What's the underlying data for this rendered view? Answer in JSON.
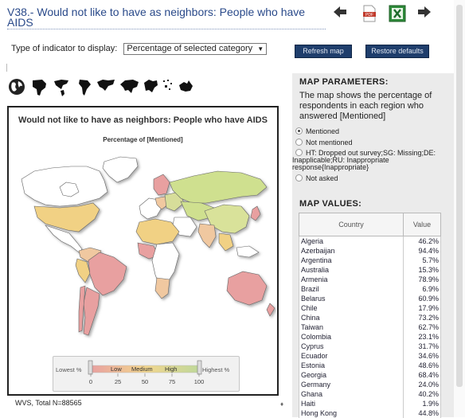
{
  "title": "V38.- Would not like to have as neighbors: People who have AIDS",
  "toolbar": {
    "back_icon": "arrow-left-icon",
    "pdf_icon": "pdf-icon",
    "excel_icon": "excel-icon",
    "forward_icon": "arrow-right-icon",
    "pdf_text": "PDF"
  },
  "controls": {
    "indicator_label": "Type of indicator to display:",
    "indicator_selected": "Percentage of selected category",
    "refresh_label": "Refresh map",
    "restore_label": "Restore defaults"
  },
  "map": {
    "title": "Would not like to have as neighbors: People who have AIDS",
    "subtitle": "Percentage of [Mentioned]",
    "legend": {
      "lowest": "Lowest %",
      "highest": "Highest %",
      "low": "Low",
      "medium": "Medium",
      "high": "High",
      "ticks": [
        "0",
        "25",
        "50",
        "75",
        "100"
      ]
    },
    "colors": {
      "low": "#e8a0a0",
      "medium": "#f2d58e",
      "high": "#bfd89a",
      "nodata": "#ffffff",
      "ocean": "#ffffff"
    }
  },
  "footer": "WVS, Total N=88565",
  "params": {
    "heading": "MAP PARAMETERS:",
    "description": "The map shows the percentage of respondents in each region who answered [Mentioned]",
    "options": [
      {
        "label": "Mentioned",
        "selected": true
      },
      {
        "label": "Not mentioned",
        "selected": false
      },
      {
        "label": "HT: Dropped out survey;SG: Missing;DE: Inapplicable;RU: Inappropriate response{Inappropriate}",
        "selected": false
      },
      {
        "label": "Not asked",
        "selected": false
      }
    ]
  },
  "values": {
    "heading": "MAP VALUES:",
    "columns": [
      "Country",
      "Value"
    ],
    "rows": [
      {
        "country": "Algeria",
        "value": "46.2%"
      },
      {
        "country": "Azerbaijan",
        "value": "94.4%"
      },
      {
        "country": "Argentina",
        "value": "5.7%"
      },
      {
        "country": "Australia",
        "value": "15.3%"
      },
      {
        "country": "Armenia",
        "value": "78.9%"
      },
      {
        "country": "Brazil",
        "value": "6.9%"
      },
      {
        "country": "Belarus",
        "value": "60.9%"
      },
      {
        "country": "Chile",
        "value": "17.9%"
      },
      {
        "country": "China",
        "value": "73.2%"
      },
      {
        "country": "Taiwan",
        "value": "62.7%"
      },
      {
        "country": "Colombia",
        "value": "23.1%"
      },
      {
        "country": "Cyprus",
        "value": "31.7%"
      },
      {
        "country": "Ecuador",
        "value": "34.6%"
      },
      {
        "country": "Estonia",
        "value": "48.6%"
      },
      {
        "country": "Georgia",
        "value": "68.4%"
      },
      {
        "country": "Germany",
        "value": "24.0%"
      },
      {
        "country": "Ghana",
        "value": "40.2%"
      },
      {
        "country": "Haiti",
        "value": "1.9%"
      },
      {
        "country": "Hong Kong",
        "value": "44.8%"
      }
    ]
  },
  "continent_icons": [
    "world-icon",
    "africa-icon",
    "americas-icon",
    "south-america-icon",
    "asia-icon",
    "europe-icon",
    "north-africa-icon",
    "oceania-icon"
  ]
}
